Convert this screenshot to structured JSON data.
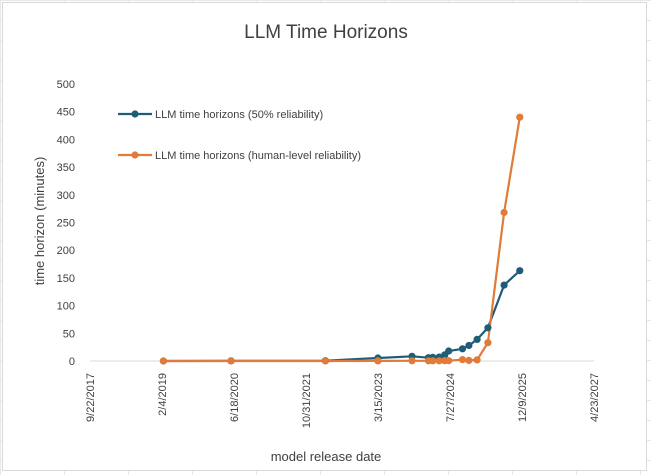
{
  "chart_data": {
    "type": "line",
    "title": "LLM Time Horizons",
    "xlabel": "model release date",
    "ylabel": "time horizon (minutes)",
    "ylim": [
      0,
      500
    ],
    "yticks": [
      "0",
      "50",
      "100",
      "150",
      "200",
      "250",
      "300",
      "350",
      "400",
      "450",
      "500"
    ],
    "xlim": [
      "9/22/2017",
      "4/23/2027"
    ],
    "xticks": [
      "9/22/2017",
      "2/4/2019",
      "6/18/2020",
      "10/31/2021",
      "3/15/2023",
      "7/27/2024",
      "12/9/2025",
      "4/23/2027"
    ],
    "grid": false,
    "legend": "top-left",
    "series": [
      {
        "name": "LLM time horizons (50% reliability)",
        "color": "#1f5c78",
        "points": [
          {
            "x": "2019-02-14",
            "y": 0.04
          },
          {
            "x": "2020-05-28",
            "y": 0.15
          },
          {
            "x": "2022-03-15",
            "y": 0.6
          },
          {
            "x": "2023-03-14",
            "y": 5.4
          },
          {
            "x": "2023-11-06",
            "y": 8.5
          },
          {
            "x": "2024-02-29",
            "y": 6.0
          },
          {
            "x": "2024-03-30",
            "y": 6.5
          },
          {
            "x": "2024-05-13",
            "y": 7.0
          },
          {
            "x": "2024-06-20",
            "y": 11
          },
          {
            "x": "2024-07-18",
            "y": 18
          },
          {
            "x": "2024-10-22",
            "y": 22
          },
          {
            "x": "2024-12-05",
            "y": 28
          },
          {
            "x": "2025-01-31",
            "y": 39
          },
          {
            "x": "2025-04-16",
            "y": 60
          },
          {
            "x": "2025-08-07",
            "y": 137
          },
          {
            "x": "2025-11-24",
            "y": 163
          }
        ]
      },
      {
        "name": "LLM time horizons (human-level reliability)",
        "color": "#e07b39",
        "points": [
          {
            "x": "2019-02-14",
            "y": 0.0
          },
          {
            "x": "2020-05-28",
            "y": 0.0
          },
          {
            "x": "2022-03-15",
            "y": 0.0
          },
          {
            "x": "2023-03-14",
            "y": 0.1
          },
          {
            "x": "2023-11-06",
            "y": 0.3
          },
          {
            "x": "2024-02-29",
            "y": 0.3
          },
          {
            "x": "2024-03-30",
            "y": 0.4
          },
          {
            "x": "2024-05-13",
            "y": 0.4
          },
          {
            "x": "2024-06-20",
            "y": 0.5
          },
          {
            "x": "2024-07-18",
            "y": 0.6
          },
          {
            "x": "2024-10-22",
            "y": 2.5
          },
          {
            "x": "2024-12-05",
            "y": 1.0
          },
          {
            "x": "2025-01-31",
            "y": 2.0
          },
          {
            "x": "2025-04-16",
            "y": 33
          },
          {
            "x": "2025-08-07",
            "y": 268
          },
          {
            "x": "2025-11-24",
            "y": 440
          }
        ]
      }
    ]
  }
}
